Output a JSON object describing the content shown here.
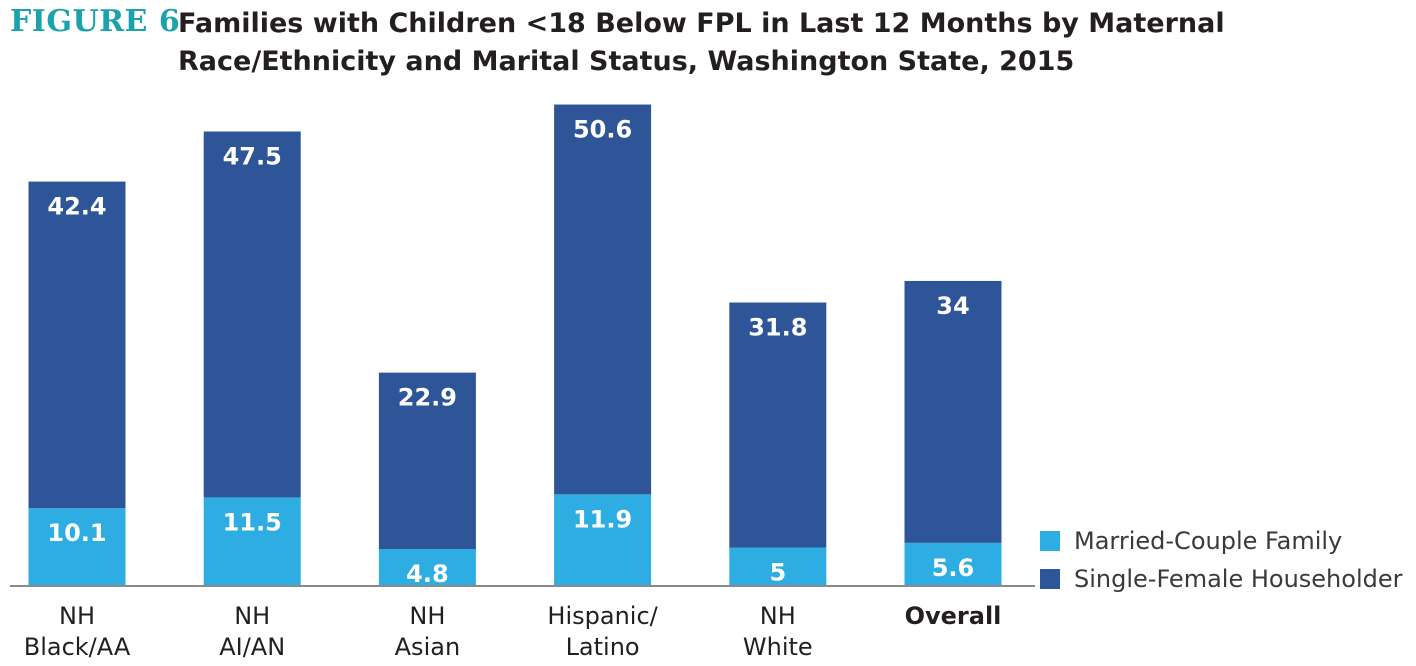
{
  "figure": {
    "label": "FIGURE 6",
    "title": "Families with Children <18 Below FPL in Last 12 Months by Maternal Race/Ethnicity and Marital Status, Washington State, 2015"
  },
  "colors": {
    "married": "#2eade3",
    "single": "#2e5597",
    "figure_label": "#1aa3ad",
    "axis": "#8a8a8a"
  },
  "chart_data": {
    "type": "bar",
    "stacked": true,
    "title": "Families with Children <18 Below FPL in Last 12 Months by Maternal Race/Ethnicity and Marital Status, Washington State, 2015",
    "categories": [
      [
        "NH",
        "Black/AA"
      ],
      [
        "NH",
        "AI/AN"
      ],
      [
        "NH",
        "Asian"
      ],
      [
        "Hispanic/",
        "Latino"
      ],
      [
        "NH",
        "White"
      ],
      [
        "Overall"
      ]
    ],
    "bold_categories": [
      "Overall"
    ],
    "series": [
      {
        "name": "Married-Couple Family",
        "values": [
          10.1,
          11.5,
          4.8,
          11.9,
          5,
          5.6
        ],
        "color": "#2eade3"
      },
      {
        "name": "Single-Female Householder",
        "values": [
          42.4,
          47.5,
          22.9,
          50.6,
          31.8,
          34
        ],
        "color": "#2e5597"
      }
    ],
    "ylim": [
      0,
      62.7
    ],
    "grid": false,
    "legend": "bottom-right",
    "data_labels": true
  },
  "legend": {
    "items": [
      {
        "label": "Married-Couple Family",
        "color": "#2eade3"
      },
      {
        "label": "Single-Female Householder",
        "color": "#2e5597"
      }
    ]
  }
}
